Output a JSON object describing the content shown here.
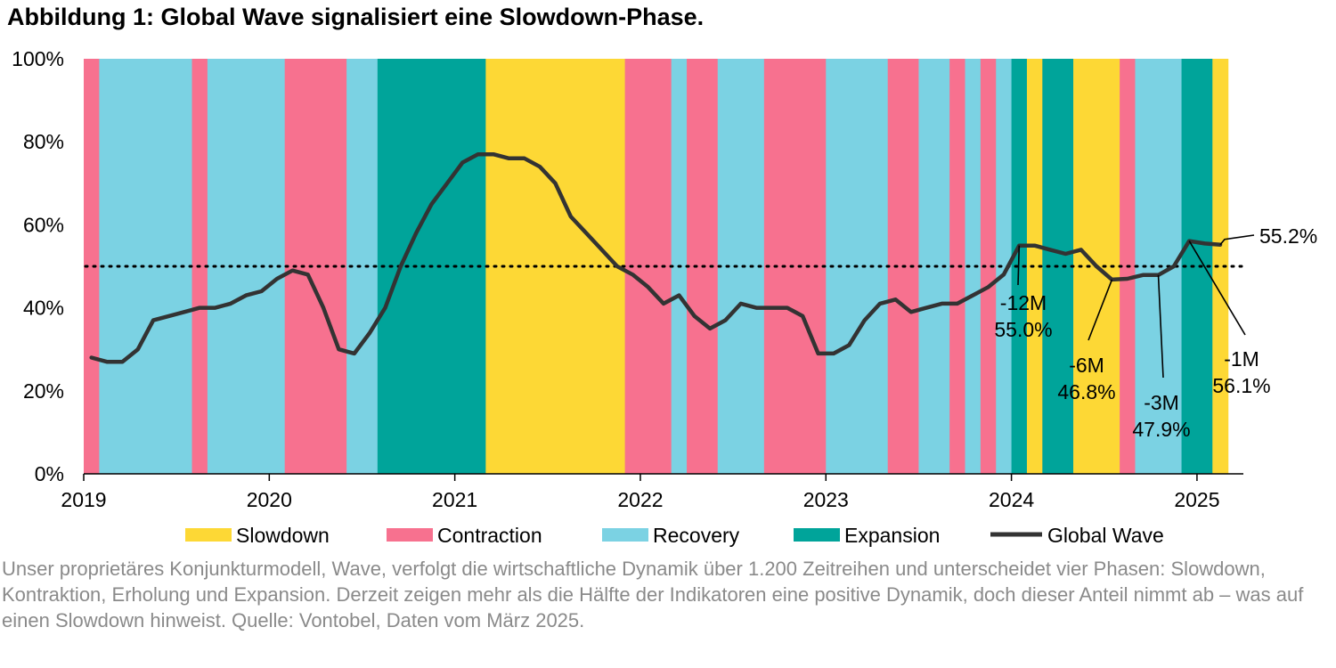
{
  "title": "Abbildung 1: Global Wave signalisiert eine Slowdown-Phase.",
  "caption": "Unser proprietäres Konjunkturmodell, Wave, verfolgt die wirtschaftliche Dynamik über 1.200 Zeitreihen und unterscheidet vier Phasen: Slowdown, Kontraktion, Erholung und Expansion. Derzeit zeigen mehr als die Hälfte der Indikatoren eine positive Dynamik, doch dieser Anteil nimmt ab – was auf einen Slowdown hinweist. Quelle: Vontobel, Daten vom März 2025.",
  "colors": {
    "Slowdown": "#FDD835",
    "Contraction": "#F7718F",
    "Recovery": "#7BD2E3",
    "Expansion": "#00A49A",
    "Global Wave": "#333333"
  },
  "chart_data": {
    "type": "line",
    "x_start": "2019-01",
    "xlim": [
      "2019-01",
      "2025-03"
    ],
    "x_ticks": [
      "2019",
      "2020",
      "2021",
      "2022",
      "2023",
      "2024",
      "2025"
    ],
    "y_ticks": [
      "0%",
      "20%",
      "40%",
      "60%",
      "80%",
      "100%"
    ],
    "ylim": [
      0,
      100
    ],
    "threshold": 50,
    "grid": false,
    "legend_position": "bottom",
    "legend": [
      "Slowdown",
      "Contraction",
      "Recovery",
      "Expansion",
      "Global Wave"
    ],
    "phases": [
      {
        "phase": "Contraction",
        "start": "2019-01",
        "months": 1
      },
      {
        "phase": "Recovery",
        "start": "2019-02",
        "months": 6
      },
      {
        "phase": "Contraction",
        "start": "2019-08",
        "months": 1
      },
      {
        "phase": "Recovery",
        "start": "2019-09",
        "months": 5
      },
      {
        "phase": "Contraction",
        "start": "2020-02",
        "months": 4
      },
      {
        "phase": "Recovery",
        "start": "2020-06",
        "months": 2
      },
      {
        "phase": "Expansion",
        "start": "2020-08",
        "months": 7
      },
      {
        "phase": "Slowdown",
        "start": "2021-03",
        "months": 9
      },
      {
        "phase": "Contraction",
        "start": "2021-12",
        "months": 3
      },
      {
        "phase": "Recovery",
        "start": "2022-03",
        "months": 1
      },
      {
        "phase": "Contraction",
        "start": "2022-04",
        "months": 2
      },
      {
        "phase": "Recovery",
        "start": "2022-06",
        "months": 3
      },
      {
        "phase": "Contraction",
        "start": "2022-09",
        "months": 4
      },
      {
        "phase": "Recovery",
        "start": "2023-01",
        "months": 4
      },
      {
        "phase": "Contraction",
        "start": "2023-05",
        "months": 2
      },
      {
        "phase": "Recovery",
        "start": "2023-07",
        "months": 2
      },
      {
        "phase": "Contraction",
        "start": "2023-09",
        "months": 1
      },
      {
        "phase": "Recovery",
        "start": "2023-10",
        "months": 1
      },
      {
        "phase": "Contraction",
        "start": "2023-11",
        "months": 1
      },
      {
        "phase": "Recovery",
        "start": "2023-12",
        "months": 1
      },
      {
        "phase": "Expansion",
        "start": "2024-01",
        "months": 1
      },
      {
        "phase": "Slowdown",
        "start": "2024-02",
        "months": 1
      },
      {
        "phase": "Expansion",
        "start": "2024-03",
        "months": 2
      },
      {
        "phase": "Slowdown",
        "start": "2024-05",
        "months": 3
      },
      {
        "phase": "Contraction",
        "start": "2024-08",
        "months": 1
      },
      {
        "phase": "Recovery",
        "start": "2024-09",
        "months": 3
      },
      {
        "phase": "Expansion",
        "start": "2024-12",
        "months": 2
      },
      {
        "phase": "Slowdown",
        "start": "2025-02",
        "months": 1
      }
    ],
    "series": [
      {
        "name": "Global Wave",
        "dates": [
          "2019-01",
          "2019-02",
          "2019-03",
          "2019-04",
          "2019-05",
          "2019-06",
          "2019-07",
          "2019-08",
          "2019-09",
          "2019-10",
          "2019-11",
          "2019-12",
          "2020-01",
          "2020-02",
          "2020-03",
          "2020-04",
          "2020-05",
          "2020-06",
          "2020-07",
          "2020-08",
          "2020-09",
          "2020-10",
          "2020-11",
          "2020-12",
          "2021-01",
          "2021-02",
          "2021-03",
          "2021-04",
          "2021-05",
          "2021-06",
          "2021-07",
          "2021-08",
          "2021-09",
          "2021-10",
          "2021-11",
          "2021-12",
          "2022-01",
          "2022-02",
          "2022-03",
          "2022-04",
          "2022-05",
          "2022-06",
          "2022-07",
          "2022-08",
          "2022-09",
          "2022-10",
          "2022-11",
          "2022-12",
          "2023-01",
          "2023-02",
          "2023-03",
          "2023-04",
          "2023-05",
          "2023-06",
          "2023-07",
          "2023-08",
          "2023-09",
          "2023-10",
          "2023-11",
          "2023-12",
          "2024-01",
          "2024-02",
          "2024-03",
          "2024-04",
          "2024-05",
          "2024-06",
          "2024-07",
          "2024-08",
          "2024-09",
          "2024-10",
          "2024-11",
          "2024-12",
          "2025-01",
          "2025-02"
        ],
        "values": [
          28,
          27,
          27,
          30,
          37,
          38,
          39,
          40,
          40,
          41,
          43,
          44,
          47,
          49,
          48,
          40,
          30,
          29,
          34,
          40,
          50,
          58,
          65,
          70,
          75,
          77,
          77,
          76,
          76,
          74,
          70,
          62,
          58,
          54,
          50,
          48,
          45,
          41,
          43,
          38,
          35,
          37,
          41,
          40,
          40,
          40,
          38,
          29,
          29,
          31,
          37,
          41,
          42,
          39,
          40,
          41,
          41,
          43,
          45,
          48,
          55.0,
          55,
          54,
          53,
          54,
          50,
          46.8,
          47,
          47.9,
          47.9,
          50,
          56.1,
          55.5,
          55.2
        ]
      }
    ],
    "annotations": [
      {
        "line1": "-12M",
        "line2": "55.0%",
        "date": "2024-01",
        "value": 55.0
      },
      {
        "line1": "-6M",
        "line2": "46.8%",
        "date": "2024-07",
        "value": 46.8
      },
      {
        "line1": "-3M",
        "line2": "47.9%",
        "date": "2024-10",
        "value": 47.9
      },
      {
        "line1": "-1M",
        "line2": "56.1%",
        "date": "2024-12",
        "value": 56.1
      }
    ],
    "last_label": "55.2%"
  }
}
